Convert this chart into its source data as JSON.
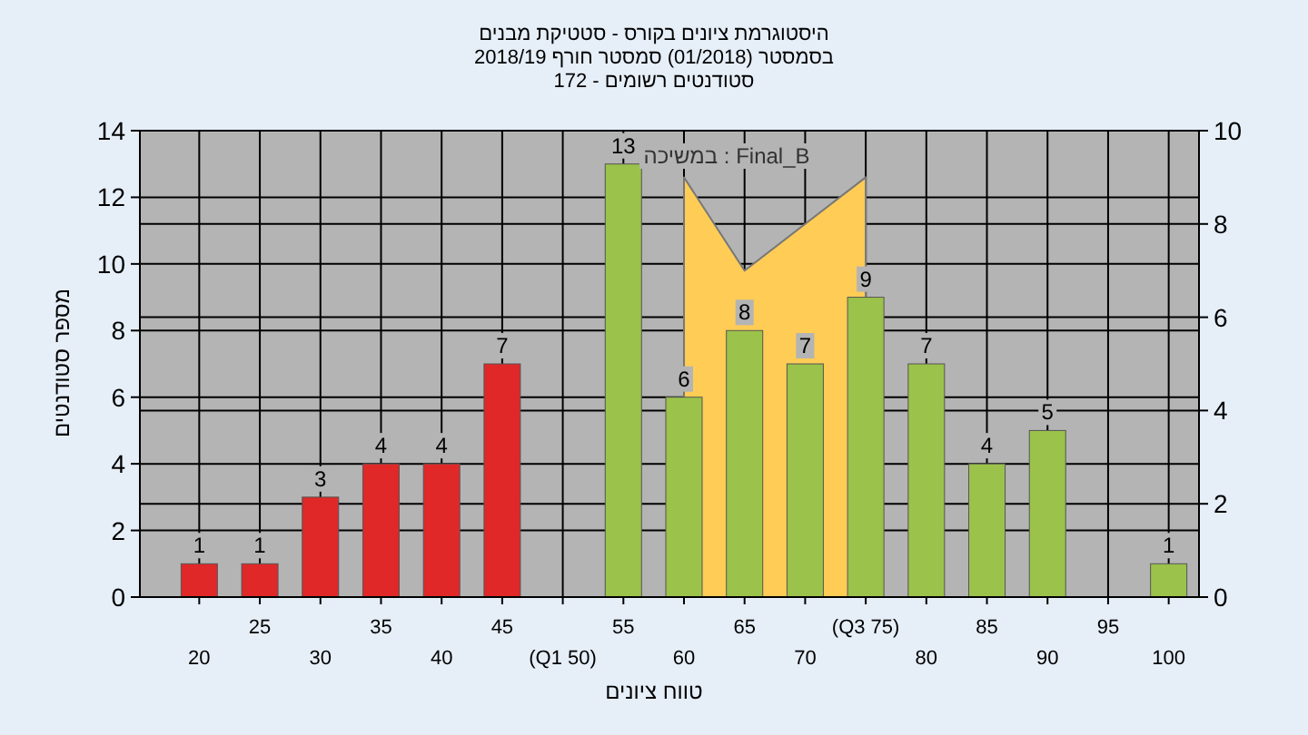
{
  "chart_data": {
    "type": "bar",
    "title": "היסטוגרמת ציונים בקורס - סטטיקת מבנים",
    "subtitle": "בסמסטר (01/2018) סמסטר חורף 2018/19\nסטודנטים רשומים - 172",
    "xlabel": "טווח ציונים",
    "ylabel": "מספר סטודנטים",
    "categories": [
      "20",
      "25",
      "30",
      "35",
      "40",
      "45",
      "(Q1 50)",
      "55",
      "60",
      "65",
      "70",
      "(Q3 75)",
      "80",
      "85",
      "90",
      "95",
      "100"
    ],
    "values": [
      1,
      1,
      3,
      4,
      4,
      7,
      null,
      13,
      6,
      8,
      7,
      9,
      7,
      4,
      5,
      null,
      1
    ],
    "value_labels": [
      "1",
      "1",
      "3",
      "4",
      "4",
      "7",
      null,
      "13",
      "6",
      "8",
      "7",
      "9",
      "7",
      "4",
      "5",
      null,
      "1"
    ],
    "colors": [
      "#e02828",
      "#e02828",
      "#e02828",
      "#e02828",
      "#e02828",
      "#e02828",
      null,
      "#9bc24a",
      "#9bc24a",
      "#9bc24a",
      "#9bc24a",
      "#9bc24a",
      "#9bc24a",
      "#9bc24a",
      "#9bc24a",
      null,
      "#9bc24a"
    ],
    "series": [
      {
        "type": "area",
        "axis": "y2",
        "color": "#ffcc55",
        "values": [
          null,
          null,
          null,
          null,
          null,
          null,
          null,
          null,
          9,
          7,
          8,
          9,
          null,
          null,
          null,
          null,
          null
        ]
      }
    ],
    "annotations": [
      "במשיכה : Final_B"
    ],
    "ylim": [
      0,
      14
    ],
    "yticks": [
      0,
      2,
      4,
      6,
      8,
      10,
      12,
      14
    ],
    "y2lim": [
      0,
      10
    ],
    "y2ticks": [
      0,
      2,
      4,
      6,
      8,
      10
    ],
    "grid": true
  }
}
